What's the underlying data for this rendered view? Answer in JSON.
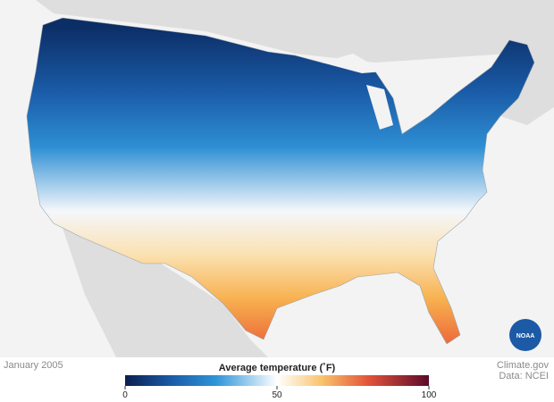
{
  "caption": {
    "date": "January 2005",
    "source": "Climate.gov",
    "data": "Data: NCEI"
  },
  "logo": {
    "text": "NOAA"
  },
  "legend": {
    "title": "Average temperature (˚F)",
    "range": [
      0,
      100
    ],
    "ticks": [
      0,
      50,
      100
    ]
  }
}
